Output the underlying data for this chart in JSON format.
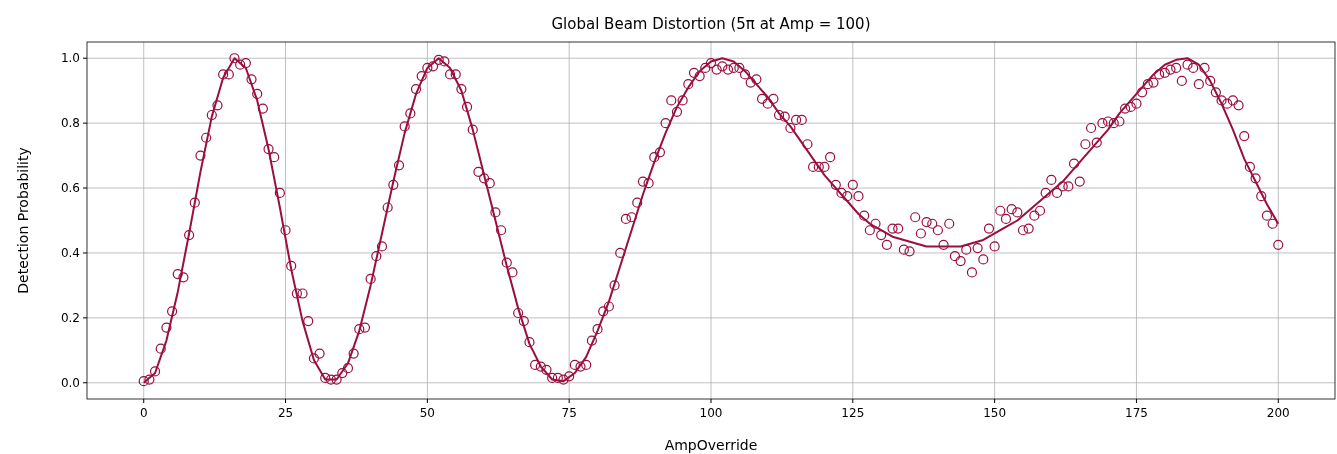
{
  "chart_data": {
    "type": "scatter",
    "title": "Global Beam Distortion (5π at Amp = 100)",
    "xlabel": "AmpOverride",
    "ylabel": "Detection Probability",
    "xlim": [
      -10,
      210
    ],
    "ylim": [
      -0.05,
      1.05
    ],
    "xticks": [
      0,
      25,
      50,
      75,
      100,
      125,
      150,
      175,
      200
    ],
    "yticks": [
      {
        "value": 0,
        "label": "0.0"
      },
      {
        "value": 0.2,
        "label": "0.2"
      },
      {
        "value": 0.4,
        "label": "0.4"
      },
      {
        "value": 0.6,
        "label": "0.6"
      },
      {
        "value": 0.8,
        "label": "0.8"
      },
      {
        "value": 1,
        "label": "1.0"
      }
    ],
    "grid": true,
    "series": [
      {
        "marker": "circle",
        "color": "#990f3d",
        "x": [
          0,
          1,
          2,
          3,
          4,
          5,
          6,
          7,
          8,
          9,
          10,
          11,
          12,
          13,
          14,
          15,
          16,
          17,
          18,
          19,
          20,
          21,
          22,
          23,
          24,
          25,
          26,
          27,
          28,
          29,
          30,
          31,
          32,
          33,
          34,
          35,
          36,
          37,
          38,
          39,
          40,
          41,
          42,
          43,
          44,
          45,
          46,
          47,
          48,
          49,
          50,
          51,
          52,
          53,
          54,
          55,
          56,
          57,
          58,
          59,
          60,
          61,
          62,
          63,
          64,
          65,
          66,
          67,
          68,
          69,
          70,
          71,
          72,
          73,
          74,
          75,
          76,
          77,
          78,
          79,
          80,
          81,
          82,
          83,
          84,
          85,
          86,
          87,
          88,
          89,
          90,
          91,
          92,
          93,
          94,
          95,
          96,
          97,
          98,
          99,
          100,
          101,
          102,
          103,
          104,
          105,
          106,
          107,
          108,
          109,
          110,
          111,
          112,
          113,
          114,
          115,
          116,
          117,
          118,
          119,
          120,
          121,
          122,
          123,
          124,
          125,
          126,
          127,
          128,
          129,
          130,
          131,
          132,
          133,
          134,
          135,
          136,
          137,
          138,
          139,
          140,
          141,
          142,
          143,
          144,
          145,
          146,
          147,
          148,
          149,
          150,
          151,
          152,
          153,
          154,
          155,
          156,
          157,
          158,
          159,
          160,
          161,
          162,
          163,
          164,
          165,
          166,
          167,
          168,
          169,
          170,
          171,
          172,
          173,
          174,
          175,
          176,
          177,
          178,
          179,
          180,
          181,
          182,
          183,
          184,
          185,
          186,
          187,
          188,
          189,
          190,
          191,
          192,
          193,
          194,
          195,
          196,
          197,
          198,
          199,
          200
        ],
        "values": [
          0.005,
          0.01,
          0.035,
          0.105,
          0.17,
          0.22,
          0.335,
          0.325,
          0.455,
          0.555,
          0.7,
          0.755,
          0.825,
          0.855,
          0.95,
          0.95,
          1.0,
          0.98,
          0.985,
          0.935,
          0.89,
          0.845,
          0.72,
          0.695,
          0.585,
          0.47,
          0.36,
          0.275,
          0.275,
          0.19,
          0.075,
          0.09,
          0.015,
          0.01,
          0.01,
          0.03,
          0.045,
          0.09,
          0.165,
          0.17,
          0.32,
          0.39,
          0.42,
          0.54,
          0.61,
          0.67,
          0.79,
          0.83,
          0.905,
          0.945,
          0.97,
          0.975,
          0.995,
          0.99,
          0.95,
          0.95,
          0.905,
          0.85,
          0.78,
          0.65,
          0.63,
          0.615,
          0.525,
          0.47,
          0.37,
          0.34,
          0.215,
          0.19,
          0.125,
          0.055,
          0.05,
          0.04,
          0.015,
          0.015,
          0.01,
          0.02,
          0.055,
          0.05,
          0.055,
          0.13,
          0.165,
          0.22,
          0.235,
          0.3,
          0.4,
          0.505,
          0.51,
          0.555,
          0.62,
          0.615,
          0.695,
          0.71,
          0.8,
          0.87,
          0.835,
          0.87,
          0.92,
          0.955,
          0.945,
          0.97,
          0.985,
          0.965,
          0.975,
          0.965,
          0.97,
          0.97,
          0.95,
          0.925,
          0.935,
          0.875,
          0.86,
          0.875,
          0.825,
          0.82,
          0.785,
          0.81,
          0.81,
          0.735,
          0.665,
          0.665,
          0.665,
          0.695,
          0.61,
          0.585,
          0.575,
          0.61,
          0.575,
          0.515,
          0.47,
          0.49,
          0.455,
          0.425,
          0.475,
          0.475,
          0.41,
          0.405,
          0.51,
          0.46,
          0.495,
          0.49,
          0.47,
          0.425,
          0.49,
          0.39,
          0.375,
          0.41,
          0.34,
          0.415,
          0.38,
          0.475,
          0.42,
          0.53,
          0.505,
          0.535,
          0.525,
          0.47,
          0.475,
          0.515,
          0.53,
          0.585,
          0.625,
          0.585,
          0.605,
          0.605,
          0.675,
          0.62,
          0.735,
          0.785,
          0.74,
          0.8,
          0.805,
          0.8,
          0.805,
          0.845,
          0.85,
          0.86,
          0.895,
          0.92,
          0.925,
          0.95,
          0.955,
          0.965,
          0.97,
          0.93,
          0.98,
          0.97,
          0.92,
          0.97,
          0.93,
          0.895,
          0.87,
          0.86,
          0.87,
          0.855,
          0.76,
          0.665,
          0.63,
          0.575,
          0.515,
          0.49,
          0.425
        ]
      },
      {
        "type": "line",
        "color": "#990f3d",
        "x": [
          0,
          2,
          4,
          6,
          8,
          10,
          12,
          14,
          16,
          18,
          20,
          22,
          24,
          26,
          28,
          30,
          32,
          34,
          36,
          38,
          40,
          42,
          44,
          46,
          48,
          50,
          52,
          54,
          56,
          58,
          60,
          62,
          64,
          66,
          68,
          70,
          72,
          74,
          76,
          78,
          80,
          82,
          84,
          86,
          88,
          90,
          92,
          94,
          96,
          98,
          100,
          102,
          104,
          106,
          108,
          110,
          112,
          114,
          116,
          118,
          120,
          122,
          124,
          126,
          128,
          130,
          132,
          134,
          136,
          138,
          140,
          142,
          144,
          146,
          148,
          150,
          152,
          154,
          156,
          158,
          160,
          162,
          164,
          166,
          168,
          170,
          172,
          174,
          176,
          178,
          180,
          182,
          184,
          186,
          188,
          190,
          192,
          194,
          196,
          198,
          200
        ],
        "values": [
          0,
          0.03,
          0.13,
          0.28,
          0.46,
          0.65,
          0.82,
          0.94,
          1.0,
          0.97,
          0.87,
          0.72,
          0.54,
          0.35,
          0.19,
          0.07,
          0.01,
          0.01,
          0.06,
          0.16,
          0.3,
          0.46,
          0.62,
          0.77,
          0.89,
          0.97,
          1.0,
          0.97,
          0.9,
          0.78,
          0.64,
          0.5,
          0.36,
          0.23,
          0.12,
          0.05,
          0.01,
          0.005,
          0.03,
          0.08,
          0.16,
          0.25,
          0.36,
          0.47,
          0.58,
          0.68,
          0.77,
          0.85,
          0.91,
          0.96,
          0.99,
          1.0,
          0.99,
          0.96,
          0.92,
          0.88,
          0.83,
          0.79,
          0.74,
          0.69,
          0.64,
          0.6,
          0.56,
          0.52,
          0.49,
          0.47,
          0.45,
          0.44,
          0.43,
          0.42,
          0.42,
          0.42,
          0.42,
          0.43,
          0.44,
          0.46,
          0.48,
          0.5,
          0.53,
          0.56,
          0.59,
          0.62,
          0.66,
          0.7,
          0.74,
          0.78,
          0.83,
          0.87,
          0.91,
          0.95,
          0.98,
          0.995,
          1.0,
          0.98,
          0.93,
          0.86,
          0.78,
          0.69,
          0.62,
          0.55,
          0.49
        ]
      }
    ]
  }
}
